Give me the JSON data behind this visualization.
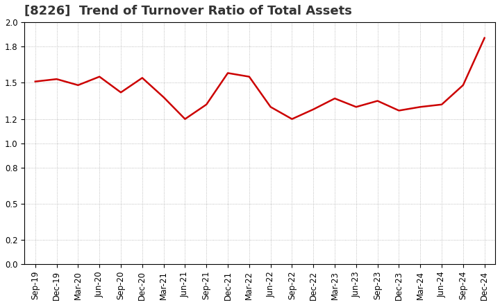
{
  "title": "[8226]  Trend of Turnover Ratio of Total Assets",
  "labels": [
    "Sep-19",
    "Dec-19",
    "Mar-20",
    "Jun-20",
    "Sep-20",
    "Dec-20",
    "Mar-21",
    "Jun-21",
    "Sep-21",
    "Dec-21",
    "Mar-22",
    "Jun-22",
    "Sep-22",
    "Dec-22",
    "Mar-23",
    "Jun-23",
    "Sep-23",
    "Dec-23",
    "Mar-24",
    "Jun-24",
    "Sep-24",
    "Dec-24"
  ],
  "values": [
    1.51,
    1.53,
    1.48,
    1.55,
    1.42,
    1.54,
    1.38,
    1.2,
    1.32,
    1.58,
    1.55,
    1.3,
    1.2,
    1.28,
    1.37,
    1.3,
    1.35,
    1.27,
    1.3,
    1.32,
    1.48,
    1.87
  ],
  "line_color": "#cc0000",
  "line_width": 1.8,
  "ylim": [
    0.0,
    2.0
  ],
  "yticks": [
    0.0,
    0.2,
    0.5,
    0.8,
    1.0,
    1.2,
    1.5,
    1.8,
    2.0
  ],
  "background_color": "#ffffff",
  "grid_color": "#aaaaaa",
  "title_fontsize": 13,
  "tick_fontsize": 8.5,
  "title_color": "#333333"
}
